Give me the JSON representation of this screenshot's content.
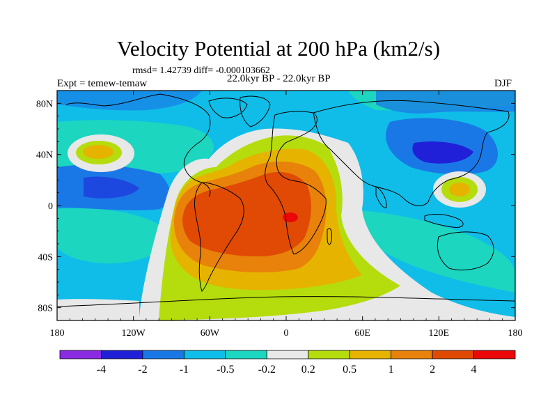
{
  "title": "Velocity Potential at 200 hPa (km2/s)",
  "stats": "rmsd= 1.42739 diff= -0.000103662",
  "expt": "Expt = temew-temaw",
  "period": "22.0kyr BP - 22.0kyr BP",
  "season": "DJF",
  "chart_data": {
    "type": "heatmap",
    "title": "Velocity Potential at 200 hPa (km2/s)",
    "xlabel": "",
    "ylabel": "",
    "x_ticks": [
      "180",
      "120W",
      "60W",
      "0",
      "60E",
      "120E",
      "180"
    ],
    "x_tick_values": [
      -180,
      -120,
      -60,
      0,
      60,
      120,
      180
    ],
    "y_ticks": [
      "80N",
      "40N",
      "0",
      "40S",
      "80S"
    ],
    "y_tick_values": [
      80,
      40,
      0,
      -40,
      -80
    ],
    "xlim": [
      -180,
      180
    ],
    "ylim": [
      -90,
      90
    ],
    "colorbar": {
      "labels": [
        "-4",
        "-2",
        "-1",
        "-0.5",
        "-0.2",
        "0.2",
        "0.5",
        "1",
        "2",
        "4"
      ],
      "levels": [
        -4,
        -2,
        -1,
        -0.5,
        -0.2,
        0.2,
        0.5,
        1,
        2,
        4
      ],
      "colors": [
        "#8a2be2",
        "#2020d8",
        "#1a78e6",
        "#10bde8",
        "#1cd6c0",
        "#e8e8e8",
        "#b5dc0c",
        "#e6b400",
        "#e8820a",
        "#e04a05",
        "#ea0808"
      ]
    },
    "features": [
      {
        "name": "positive maximum (Atlantic / Africa)",
        "lon": 5,
        "lat": -8,
        "value": 4
      },
      {
        "name": "positive maximum (West Pacific / Philippines)",
        "lon": 125,
        "lat": 15,
        "value": 1
      },
      {
        "name": "positive maximum (North Pacific)",
        "lon": -152,
        "lat": 45,
        "value": 1
      },
      {
        "name": "negative minimum (NW Pacific)",
        "lon": 115,
        "lat": 40,
        "value": -2
      },
      {
        "name": "negative minimum (Eastern Pacific)",
        "lon": -130,
        "lat": 20,
        "value": -2
      }
    ]
  }
}
